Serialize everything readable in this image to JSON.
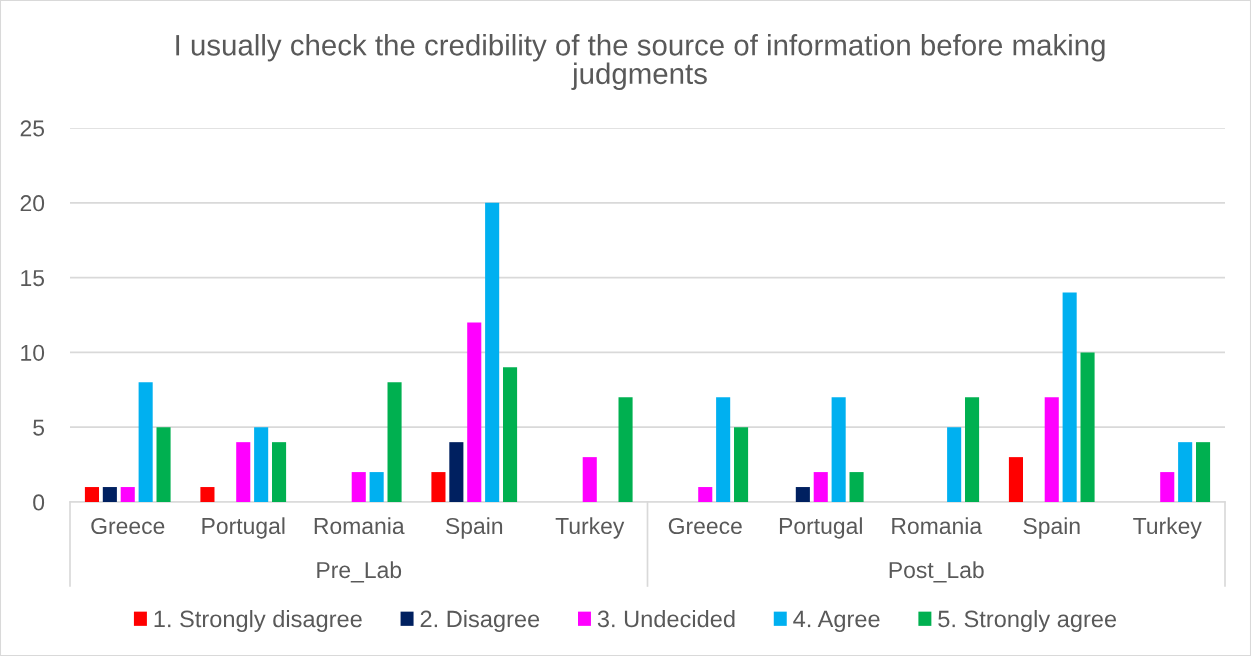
{
  "chart_data": {
    "type": "bar",
    "title": "I usually check the credibility of the source of information before making judgments",
    "categories": [
      "Greece",
      "Portugal",
      "Romania",
      "Spain",
      "Turkey",
      "Greece",
      "Portugal",
      "Romania",
      "Spain",
      "Turkey"
    ],
    "series": [
      {
        "name": "1. Strongly disagree",
        "color": "#ff0000",
        "values": [
          1,
          1,
          null,
          2,
          null,
          null,
          null,
          null,
          3,
          null
        ]
      },
      {
        "name": "2. Disagree",
        "color": "#002060",
        "values": [
          1,
          null,
          null,
          4,
          null,
          null,
          1,
          null,
          null,
          null
        ]
      },
      {
        "name": "3. Undecided",
        "color": "#ff00ff",
        "values": [
          1,
          4,
          2,
          12,
          3,
          1,
          2,
          null,
          7,
          2
        ]
      },
      {
        "name": "4. Agree",
        "color": "#00b0f0",
        "values": [
          8,
          5,
          2,
          20,
          null,
          7,
          7,
          5,
          14,
          4
        ]
      },
      {
        "name": "5. Strongly agree",
        "color": "#00b050",
        "values": [
          5,
          4,
          8,
          9,
          7,
          5,
          2,
          7,
          10,
          4
        ]
      }
    ],
    "ylim": [
      0,
      25
    ],
    "yticks": [
      0,
      5,
      10,
      15,
      20,
      25
    ],
    "grid": "y",
    "legend": "bottom",
    "annotations": [
      "Pre_Lab",
      "Post_Lab"
    ]
  }
}
